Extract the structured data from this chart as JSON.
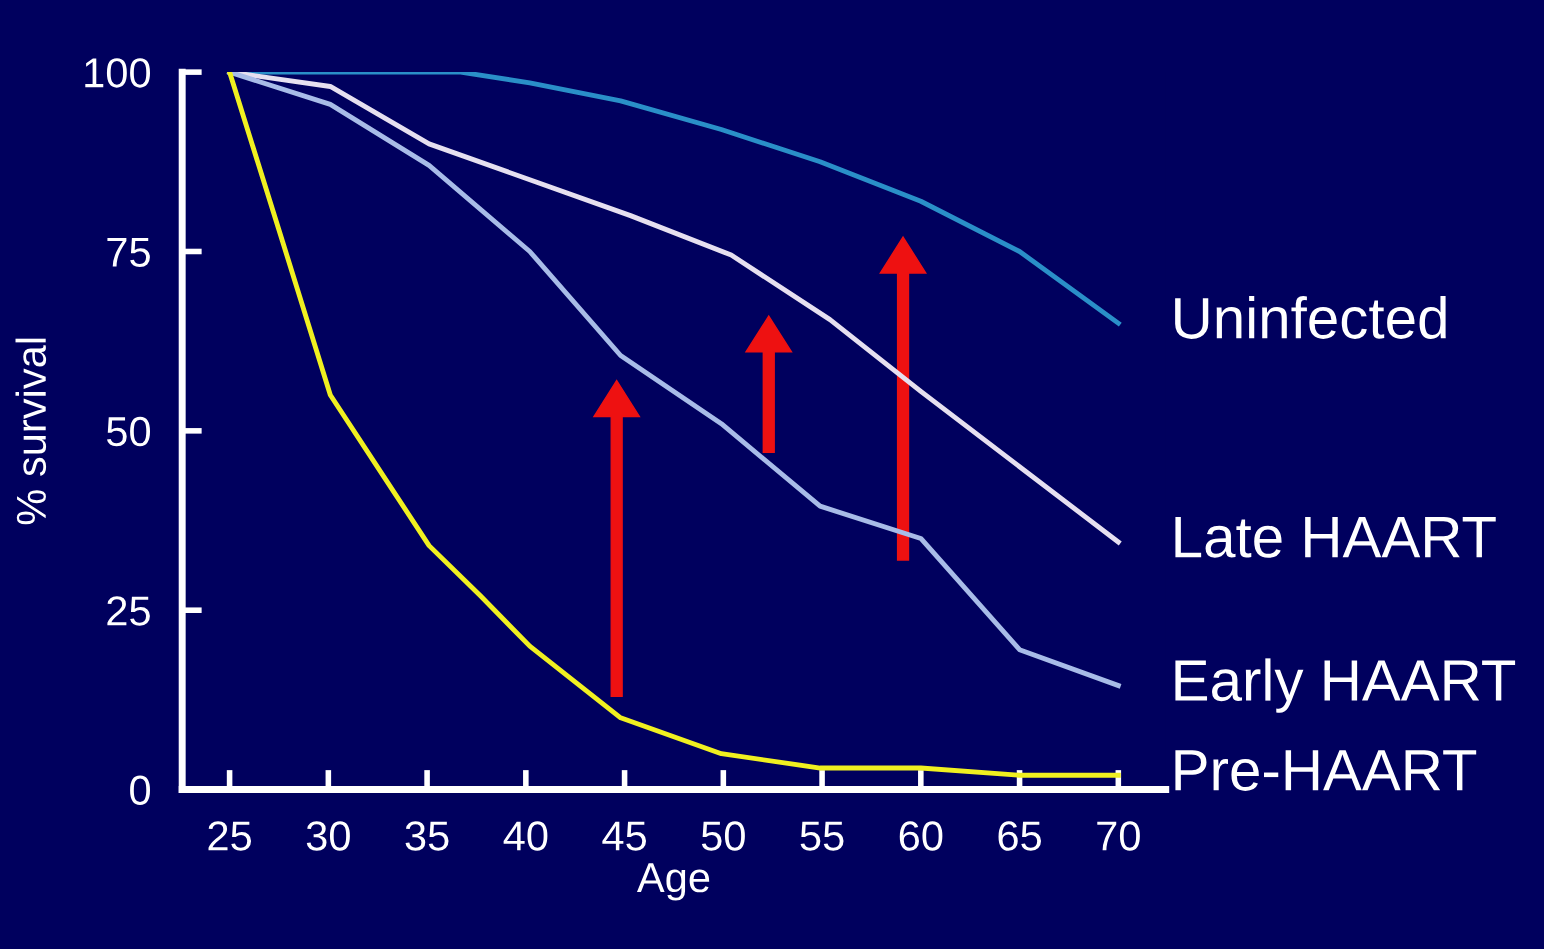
{
  "chart_data": {
    "type": "line",
    "xlabel": "Age",
    "ylabel": "% survival",
    "xlim": [
      22.6,
      72.4
    ],
    "xticks": [
      25,
      30,
      35,
      40,
      45,
      50,
      55,
      60,
      65,
      70
    ],
    "ylim": [
      0,
      100
    ],
    "yticks": [
      0,
      25,
      50,
      75,
      100
    ],
    "grid": false,
    "legend": false,
    "marker": "none",
    "line_style": "solid",
    "series": [
      {
        "name": "Uninfected",
        "color": "#2a8fc8",
        "x": [
          25,
          36.7,
          40.2,
          44.8,
          49.9,
          54.9,
          60,
          65,
          70
        ],
        "values": [
          100,
          100,
          98.5,
          96,
          92,
          87.5,
          82,
          75,
          65
        ]
      },
      {
        "name": "Late HAART",
        "color": "#e6e0f0",
        "x": [
          25,
          30.1,
          35.1,
          40.2,
          45.3,
          50.4,
          55.4,
          60,
          65,
          70
        ],
        "values": [
          100,
          98,
          90,
          85,
          80,
          74.5,
          65.5,
          55.5,
          45,
          34.5
        ]
      },
      {
        "name": "Early HAART",
        "color": "#a8bce8",
        "x": [
          25,
          30.1,
          35.1,
          40.2,
          44.8,
          49.9,
          54.9,
          60,
          65,
          70
        ],
        "values": [
          100,
          95.5,
          87,
          75,
          60.5,
          51,
          39.5,
          35,
          19.5,
          14.5
        ]
      },
      {
        "name": "Pre-HAART",
        "color": "#f0f020",
        "x": [
          25,
          27.5,
          30.1,
          32.6,
          35.1,
          37.7,
          40.2,
          44.8,
          49.9,
          54.9,
          60,
          65,
          70
        ],
        "values": [
          100,
          78,
          55,
          44.5,
          34,
          27,
          20,
          10,
          5,
          3,
          3,
          2,
          2
        ]
      }
    ]
  }
}
